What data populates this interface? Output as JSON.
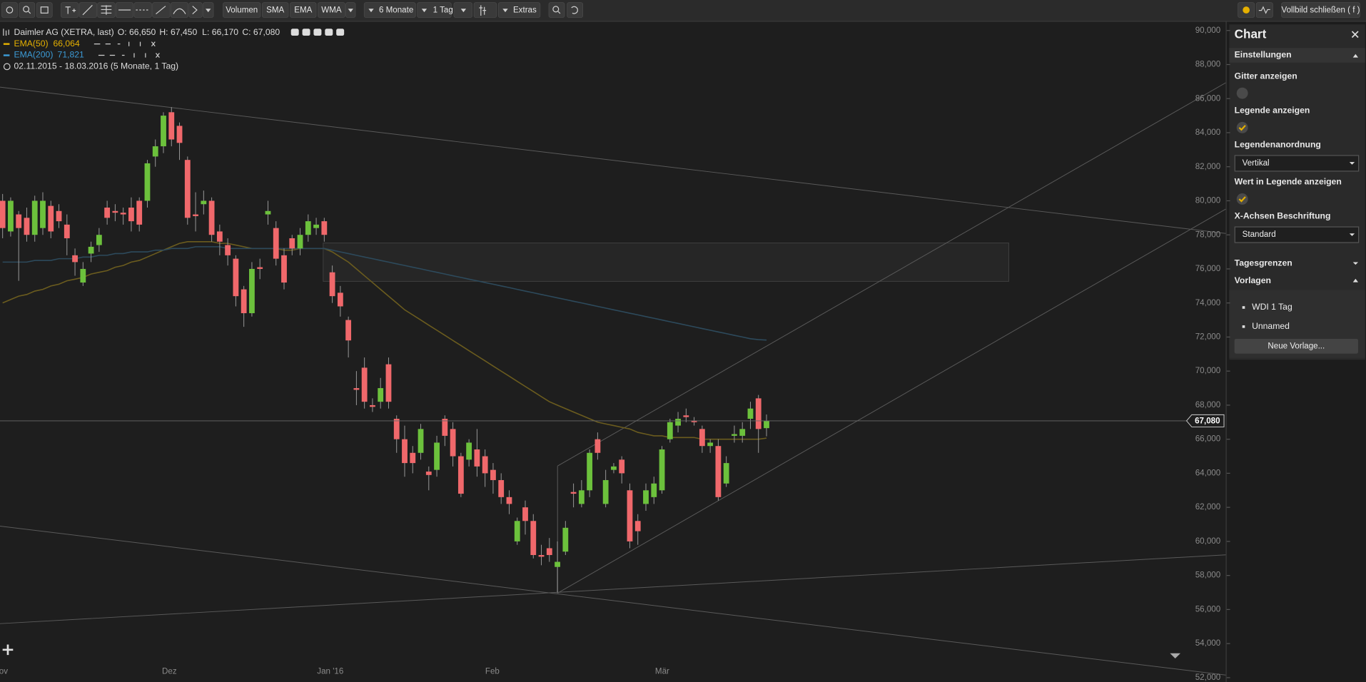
{
  "toolbar": {
    "volume": "Volumen",
    "sma": "SMA",
    "ema": "EMA",
    "wma": "WMA",
    "range": "6 Monate",
    "interval": "1 Tag",
    "extras": "Extras",
    "fullscreen": "Vollbild schließen ( f )"
  },
  "legend": {
    "instrument": "Daimler AG (XETRA, last)",
    "open": "O: 66,650",
    "high": "H: 67,450",
    "low": "L: 66,170",
    "close": "C: 67,080",
    "ema50_value": "66,064",
    "ema200_value": "71,821",
    "period": "02.11.2015 - 18.03.2016 (5 Monate, 1 Tag)"
  },
  "chart_data": {
    "type": "candlestick",
    "ylim": [
      52000,
      90000
    ],
    "yticks": [
      {
        "value": 52000,
        "label": "52,000"
      },
      {
        "value": 54000,
        "label": "54,000"
      },
      {
        "value": 56000,
        "label": "56,000"
      },
      {
        "value": 58000,
        "label": "58,000"
      },
      {
        "value": 60000,
        "label": "60,000"
      },
      {
        "value": 62000,
        "label": "62,000"
      },
      {
        "value": 64000,
        "label": "64,000"
      },
      {
        "value": 66000,
        "label": "66,000"
      },
      {
        "value": 68000,
        "label": "68,000"
      },
      {
        "value": 70000,
        "label": "70,000"
      },
      {
        "value": 72000,
        "label": "72,000"
      },
      {
        "value": 74000,
        "label": "74,000"
      },
      {
        "value": 76000,
        "label": "76,000"
      },
      {
        "value": 78000,
        "label": "78,000"
      },
      {
        "value": 80000,
        "label": "80,000"
      },
      {
        "value": 82000,
        "label": "82,000"
      },
      {
        "value": 84000,
        "label": "84,000"
      },
      {
        "value": 86000,
        "label": "86,000"
      },
      {
        "value": 88000,
        "label": "88,000"
      },
      {
        "value": 90000,
        "label": "90,000"
      }
    ],
    "x_labels": [
      "ov",
      "Dez",
      "Jan '16",
      "Feb",
      "Mär"
    ],
    "up_color": "#6cc13c",
    "down_color": "#f0686b",
    "open": [
      80000,
      78200,
      79200,
      79000,
      78000,
      78400,
      79700,
      79400,
      78600,
      76800,
      75200,
      76900,
      77400,
      79600,
      79400,
      79300,
      79600,
      80000,
      80000,
      82600,
      83200,
      85200,
      84400,
      82400,
      79200,
      79800,
      80000,
      78200,
      77400,
      76600,
      74800,
      73400,
      76100,
      79200,
      78400,
      76800,
      77800,
      77200,
      78000,
      78400,
      78800,
      75800,
      74600,
      73000,
      69000,
      70200,
      68000,
      68200,
      70400,
      67200,
      66000,
      65200,
      65200,
      64100,
      64200,
      67200,
      66600,
      65000,
      64800,
      65400,
      65000,
      64200,
      63600,
      62600,
      60000,
      62000,
      61200,
      59200,
      59600,
      58500,
      59400,
      62900,
      62200,
      63000,
      66000,
      62200,
      64200,
      64800,
      63000,
      61200,
      62200,
      62600,
      63000,
      66000,
      66800,
      67400,
      67100,
      66600,
      65600,
      65600,
      63400,
      66200,
      66200,
      67200,
      68400,
      66650
    ],
    "high": [
      80400,
      80200,
      79400,
      79600,
      80300,
      80500,
      80000,
      79800,
      79200,
      77200,
      76400,
      77600,
      78400,
      80000,
      79800,
      79600,
      80200,
      80200,
      82400,
      83600,
      85200,
      85500,
      84600,
      82600,
      80500,
      80600,
      80200,
      78600,
      77800,
      76800,
      75000,
      76400,
      76600,
      80000,
      78800,
      77200,
      78000,
      78400,
      79200,
      79000,
      79000,
      76200,
      75000,
      73200,
      70000,
      70800,
      68400,
      69600,
      70800,
      67400,
      66800,
      65600,
      66900,
      64400,
      66200,
      67400,
      67000,
      65200,
      66000,
      66600,
      65400,
      64600,
      64000,
      63000,
      61400,
      62400,
      61600,
      59800,
      60200,
      60000,
      61200,
      63400,
      63600,
      65400,
      66400,
      64200,
      64600,
      65000,
      63400,
      61600,
      63400,
      63800,
      65600,
      67200,
      67600,
      67800,
      67300,
      66800,
      66000,
      66000,
      65000,
      66800,
      67000,
      68200,
      68600,
      67450
    ],
    "low": [
      77800,
      77900,
      75300,
      77600,
      77600,
      78000,
      77800,
      78400,
      76800,
      75600,
      75000,
      76400,
      77000,
      78600,
      78800,
      78600,
      78200,
      78200,
      79600,
      82000,
      82800,
      83200,
      82400,
      78600,
      78200,
      79200,
      77600,
      76800,
      76200,
      73800,
      72600,
      73200,
      75400,
      78600,
      76200,
      74800,
      76800,
      76800,
      77600,
      78000,
      77600,
      74000,
      73200,
      70800,
      68000,
      67800,
      67600,
      67800,
      67800,
      65200,
      63800,
      64000,
      64800,
      63000,
      63800,
      65600,
      64400,
      62600,
      64400,
      63800,
      63200,
      62800,
      62200,
      61600,
      59800,
      60400,
      59000,
      58600,
      58800,
      57000,
      59200,
      62000,
      62000,
      62600,
      64800,
      62000,
      64000,
      63400,
      59600,
      59800,
      61800,
      62200,
      62800,
      65800,
      66400,
      67000,
      66800,
      65200,
      65200,
      62400,
      63200,
      65800,
      65800,
      66600,
      65200,
      66170
    ],
    "close": [
      78400,
      80000,
      78400,
      78000,
      80000,
      80000,
      78200,
      78800,
      77800,
      76400,
      76000,
      77300,
      78000,
      79000,
      79300,
      79200,
      78800,
      78600,
      82200,
      83200,
      85000,
      83600,
      83400,
      79000,
      79100,
      80000,
      78000,
      77600,
      76800,
      74400,
      73400,
      76000,
      76000,
      79400,
      76600,
      75200,
      77200,
      78000,
      78800,
      78600,
      78000,
      74400,
      73800,
      71800,
      68900,
      68200,
      67900,
      69000,
      68200,
      66000,
      64600,
      64600,
      66600,
      63900,
      65800,
      66200,
      65000,
      62800,
      65800,
      64400,
      64000,
      63600,
      62600,
      62200,
      61200,
      61200,
      59200,
      59100,
      59200,
      58800,
      60800,
      62800,
      63000,
      65200,
      65200,
      63600,
      64400,
      64000,
      60000,
      60600,
      63000,
      63400,
      65400,
      67000,
      67200,
      67300,
      67000,
      65600,
      65800,
      62600,
      64600,
      66300,
      66600,
      67800,
      66600,
      67080
    ],
    "series": [
      {
        "name": "EMA(50)",
        "color": "#6b5c1e",
        "values": [
          74000,
          74200,
          74400,
          74500,
          74700,
          74800,
          75000,
          75100,
          75300,
          75400,
          75500,
          75700,
          75800,
          75900,
          76100,
          76200,
          76400,
          76500,
          76700,
          76900,
          77100,
          77300,
          77500,
          77600,
          77600,
          77600,
          77600,
          77500,
          77500,
          77400,
          77300,
          77200,
          77200,
          77200,
          77200,
          77100,
          77100,
          77200,
          77200,
          77200,
          77200,
          77000,
          76700,
          76400,
          76000,
          75600,
          75200,
          74800,
          74400,
          74000,
          73600,
          73300,
          73000,
          72700,
          72400,
          72100,
          71800,
          71500,
          71200,
          70900,
          70600,
          70300,
          70000,
          69700,
          69400,
          69100,
          68800,
          68500,
          68200,
          68000,
          67800,
          67600,
          67400,
          67200,
          67000,
          66900,
          66800,
          66700,
          66600,
          66400,
          66300,
          66200,
          66200,
          66100,
          66100,
          66100,
          66100,
          66000,
          66000,
          66000,
          66000,
          66000,
          66000,
          66000,
          66000,
          66064
        ]
      },
      {
        "name": "EMA(200)",
        "color": "#2d4a5c",
        "values": [
          76400,
          76400,
          76400,
          76400,
          76500,
          76500,
          76500,
          76600,
          76600,
          76600,
          76700,
          76700,
          76800,
          76800,
          76900,
          76900,
          77000,
          77000,
          77000,
          77100,
          77100,
          77200,
          77200,
          77200,
          77300,
          77300,
          77300,
          77300,
          77200,
          77200,
          77200,
          77200,
          77200,
          77200,
          77200,
          77200,
          77200,
          77200,
          77200,
          77200,
          77200,
          77100,
          77000,
          76900,
          76800,
          76700,
          76600,
          76500,
          76400,
          76300,
          76200,
          76100,
          76000,
          75900,
          75800,
          75700,
          75600,
          75500,
          75400,
          75300,
          75200,
          75100,
          75000,
          74900,
          74800,
          74700,
          74600,
          74500,
          74400,
          74300,
          74200,
          74100,
          74000,
          73900,
          73800,
          73700,
          73600,
          73500,
          73400,
          73300,
          73200,
          73100,
          73000,
          72900,
          72800,
          72700,
          72600,
          72500,
          72400,
          72300,
          72200,
          72100,
          72000,
          71900,
          71850,
          71821
        ]
      }
    ],
    "legend_colors": [
      "#e5b000",
      "#3c9bd6"
    ],
    "last_price_label": "67,080"
  },
  "panel": {
    "title": "Chart",
    "settings": "Einstellungen",
    "grid": "Gitter anzeigen",
    "show_legend": "Legende anzeigen",
    "legend_layout": "Legendenanordnung",
    "legend_layout_value": "Vertikal",
    "value_in_legend": "Wert in Legende anzeigen",
    "x_axis_labels": "X-Achsen Beschriftung",
    "x_axis_labels_value": "Standard",
    "day_limits": "Tagesgrenzen",
    "templates": "Vorlagen",
    "template_items": [
      "WDI 1 Tag",
      "Unnamed"
    ],
    "new_template": "Neue Vorlage..."
  }
}
